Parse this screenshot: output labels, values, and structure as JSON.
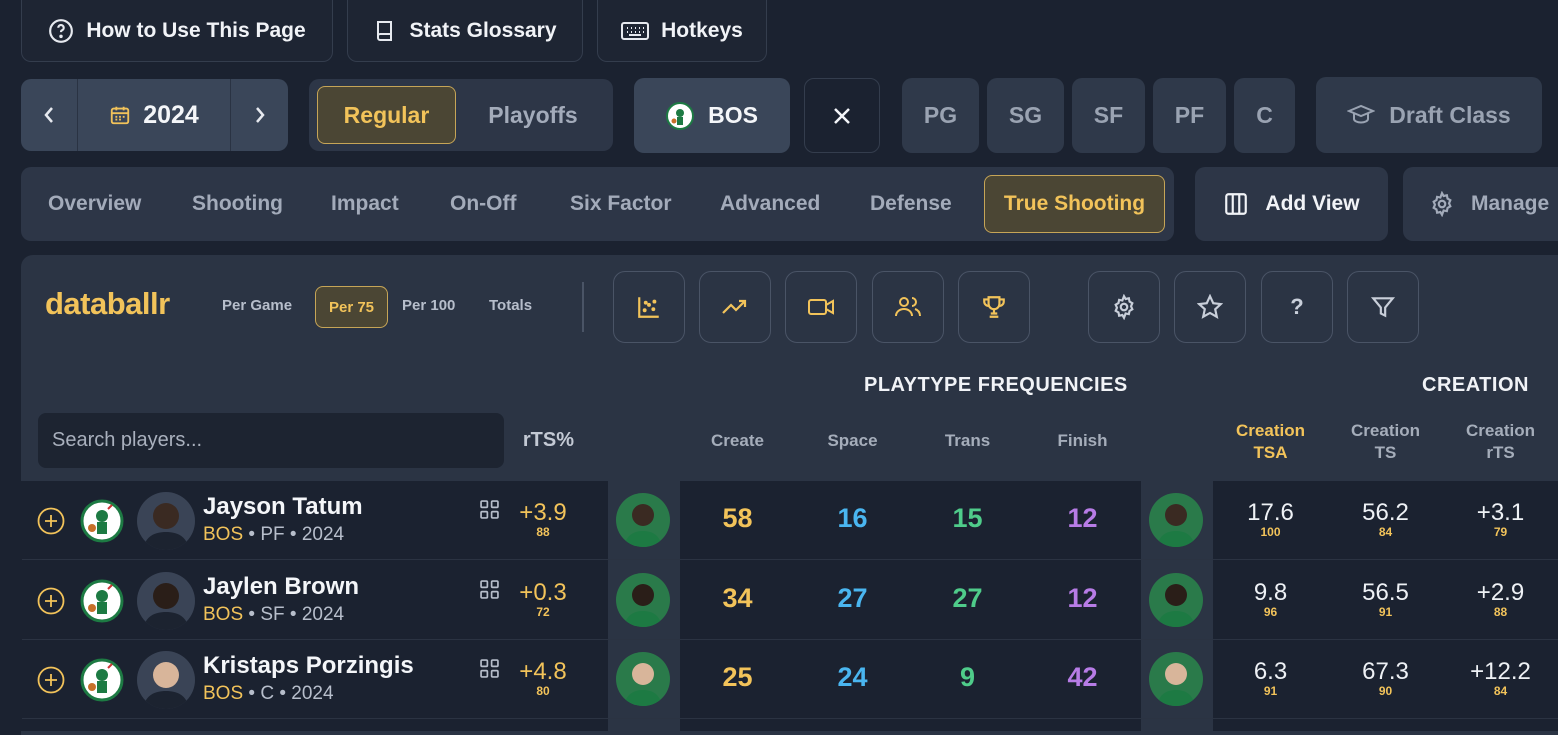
{
  "top_buttons": {
    "how_to": "How to Use This Page",
    "glossary": "Stats Glossary",
    "hotkeys": "Hotkeys"
  },
  "season": {
    "year": "2024"
  },
  "season_type": {
    "regular": "Regular",
    "playoffs": "Playoffs"
  },
  "team": {
    "abbr": "BOS"
  },
  "positions": [
    "PG",
    "SG",
    "SF",
    "PF",
    "C"
  ],
  "draft_class": "Draft Class",
  "tabs": [
    "Overview",
    "Shooting",
    "Impact",
    "On-Off",
    "Six Factor",
    "Advanced",
    "Defense",
    "True Shooting"
  ],
  "add_view": "Add View",
  "manage": "Manage",
  "brand": "databallr",
  "modes": [
    "Per Game",
    "Per 75",
    "Per 100",
    "Totals"
  ],
  "search_placeholder": "Search players...",
  "groups": {
    "playtype": "PLAYTYPE FREQUENCIES",
    "creation": "CREATION"
  },
  "columns": {
    "rts": "rTS%",
    "create": "Create",
    "space": "Space",
    "trans": "Trans",
    "finish": "Finish",
    "creation_tsa_1": "Creation",
    "creation_tsa_2": "TSA",
    "creation_ts_1": "Creation",
    "creation_ts_2": "TS",
    "creation_rts_1": "Creation",
    "creation_rts_2": "rTS"
  },
  "players": [
    {
      "name": "Jayson Tatum",
      "team": "BOS",
      "meta": "• PF • 2024",
      "rts": "+3.9",
      "rts_pct": "88",
      "create": "58",
      "space": "16",
      "trans": "15",
      "finish": "12",
      "tsa": "17.6",
      "tsa_pct": "100",
      "ts": "56.2",
      "ts_pct": "84",
      "crts": "+3.1",
      "crts_pct": "79"
    },
    {
      "name": "Jaylen Brown",
      "team": "BOS",
      "meta": "• SF • 2024",
      "rts": "+0.3",
      "rts_pct": "72",
      "create": "34",
      "space": "27",
      "trans": "27",
      "finish": "12",
      "tsa": "9.8",
      "tsa_pct": "96",
      "ts": "56.5",
      "ts_pct": "91",
      "crts": "+2.9",
      "crts_pct": "88"
    },
    {
      "name": "Kristaps Porzingis",
      "team": "BOS",
      "meta": "• C • 2024",
      "rts": "+4.8",
      "rts_pct": "80",
      "create": "25",
      "space": "24",
      "trans": "9",
      "finish": "42",
      "tsa": "6.3",
      "tsa_pct": "91",
      "ts": "67.3",
      "ts_pct": "90",
      "crts": "+12.2",
      "crts_pct": "84"
    }
  ]
}
